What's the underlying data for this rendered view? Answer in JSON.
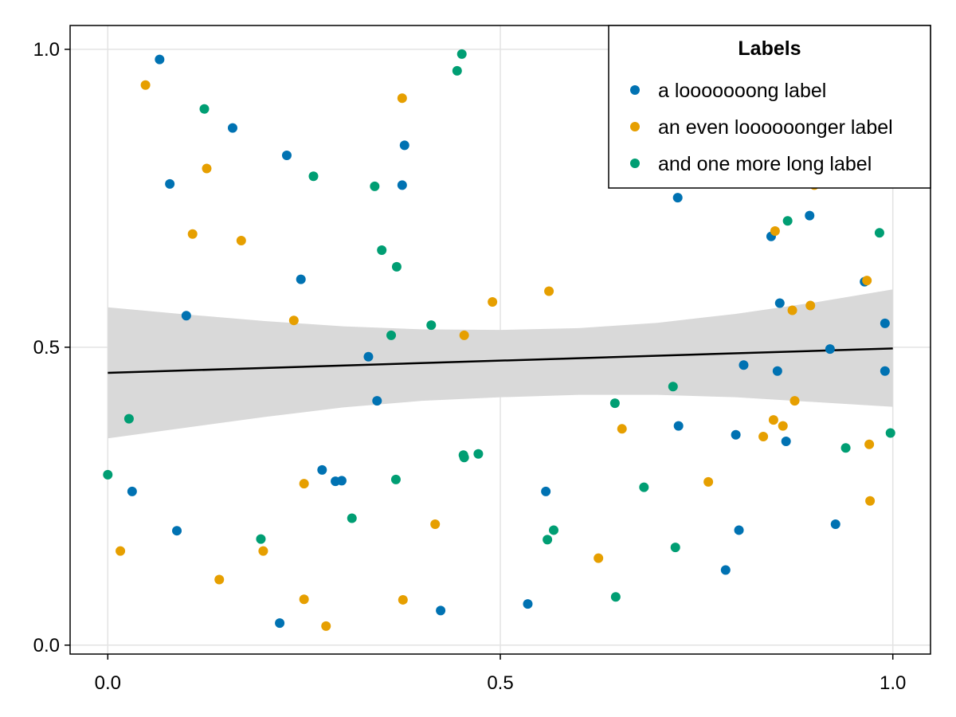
{
  "chart_data": {
    "type": "scatter",
    "title": "",
    "xlabel": "",
    "ylabel": "",
    "xlim": [
      -0.048,
      1.048
    ],
    "ylim": [
      -0.015,
      1.04
    ],
    "x_ticks": [
      {
        "value": 0.0,
        "label": "0.0"
      },
      {
        "value": 0.5,
        "label": "0.5"
      },
      {
        "value": 1.0,
        "label": "1.0"
      }
    ],
    "y_ticks": [
      {
        "value": 0.0,
        "label": "0.0"
      },
      {
        "value": 0.5,
        "label": "0.5"
      },
      {
        "value": 1.0,
        "label": "1.0"
      }
    ],
    "grid": true,
    "legend": {
      "title": "Labels",
      "placement": "top-right"
    },
    "series": [
      {
        "name": "a looooooong label",
        "color": "#0072b2",
        "points": [
          [
            0.066,
            0.983
          ],
          [
            0.159,
            0.868
          ],
          [
            0.228,
            0.822
          ],
          [
            0.079,
            0.774
          ],
          [
            0.378,
            0.839
          ],
          [
            0.375,
            0.772
          ],
          [
            0.246,
            0.614
          ],
          [
            0.1,
            0.553
          ],
          [
            0.332,
            0.484
          ],
          [
            0.343,
            0.41
          ],
          [
            0.273,
            0.294
          ],
          [
            0.29,
            0.275
          ],
          [
            0.298,
            0.276
          ],
          [
            0.031,
            0.258
          ],
          [
            0.088,
            0.192
          ],
          [
            0.219,
            0.037
          ],
          [
            0.424,
            0.058
          ],
          [
            0.535,
            0.069
          ],
          [
            0.558,
            0.258
          ],
          [
            0.726,
            0.751
          ],
          [
            0.727,
            0.368
          ],
          [
            0.787,
            0.126
          ],
          [
            0.8,
            0.353
          ],
          [
            0.804,
            0.193
          ],
          [
            0.81,
            0.47
          ],
          [
            0.845,
            0.686
          ],
          [
            0.853,
            0.46
          ],
          [
            0.856,
            0.574
          ],
          [
            0.864,
            0.342
          ],
          [
            0.894,
            0.721
          ],
          [
            0.92,
            0.497
          ],
          [
            0.927,
            0.203
          ],
          [
            0.964,
            0.61
          ],
          [
            0.99,
            0.54
          ],
          [
            0.99,
            0.46
          ]
        ]
      },
      {
        "name": "an even loooooonger label",
        "color": "#e69f00",
        "points": [
          [
            0.048,
            0.94
          ],
          [
            0.126,
            0.8
          ],
          [
            0.108,
            0.69
          ],
          [
            0.17,
            0.679
          ],
          [
            0.237,
            0.545
          ],
          [
            0.375,
            0.918
          ],
          [
            0.49,
            0.576
          ],
          [
            0.454,
            0.52
          ],
          [
            0.562,
            0.594
          ],
          [
            0.016,
            0.158
          ],
          [
            0.142,
            0.11
          ],
          [
            0.198,
            0.158
          ],
          [
            0.25,
            0.271
          ],
          [
            0.25,
            0.077
          ],
          [
            0.278,
            0.032
          ],
          [
            0.376,
            0.076
          ],
          [
            0.417,
            0.203
          ],
          [
            0.625,
            0.146
          ],
          [
            0.655,
            0.363
          ],
          [
            0.765,
            0.274
          ],
          [
            0.835,
            0.35
          ],
          [
            0.848,
            0.378
          ],
          [
            0.85,
            0.695
          ],
          [
            0.86,
            0.368
          ],
          [
            0.872,
            0.562
          ],
          [
            0.895,
            0.57
          ],
          [
            0.875,
            0.41
          ],
          [
            0.9,
            0.772
          ],
          [
            0.967,
            0.612
          ],
          [
            0.97,
            0.337
          ],
          [
            0.971,
            0.242
          ]
        ]
      },
      {
        "name": "and one more long label",
        "color": "#009e73",
        "points": [
          [
            0.0,
            0.286
          ],
          [
            0.027,
            0.38
          ],
          [
            0.123,
            0.9
          ],
          [
            0.262,
            0.787
          ],
          [
            0.195,
            0.178
          ],
          [
            0.311,
            0.213
          ],
          [
            0.34,
            0.77
          ],
          [
            0.349,
            0.663
          ],
          [
            0.361,
            0.52
          ],
          [
            0.368,
            0.635
          ],
          [
            0.367,
            0.278
          ],
          [
            0.412,
            0.537
          ],
          [
            0.445,
            0.964
          ],
          [
            0.451,
            0.992
          ],
          [
            0.453,
            0.319
          ],
          [
            0.454,
            0.315
          ],
          [
            0.472,
            0.321
          ],
          [
            0.56,
            0.177
          ],
          [
            0.568,
            0.193
          ],
          [
            0.646,
            0.406
          ],
          [
            0.647,
            0.081
          ],
          [
            0.683,
            0.265
          ],
          [
            0.72,
            0.434
          ],
          [
            0.723,
            0.164
          ],
          [
            0.866,
            0.712
          ],
          [
            0.94,
            0.331
          ],
          [
            0.983,
            0.692
          ],
          [
            0.997,
            0.356
          ]
        ]
      }
    ],
    "regression": {
      "color": "#000000",
      "line": [
        [
          0.0,
          0.457
        ],
        [
          1.0,
          0.498
        ]
      ],
      "band_color": "#d9d9d9",
      "band_x": [
        0.0,
        0.1,
        0.2,
        0.3,
        0.4,
        0.5,
        0.6,
        0.7,
        0.8,
        0.9,
        1.0
      ],
      "band_upper": [
        0.567,
        0.555,
        0.544,
        0.535,
        0.53,
        0.529,
        0.532,
        0.541,
        0.556,
        0.575,
        0.597
      ],
      "band_lower": [
        0.347,
        0.365,
        0.383,
        0.399,
        0.41,
        0.416,
        0.42,
        0.42,
        0.416,
        0.408,
        0.4
      ]
    }
  }
}
